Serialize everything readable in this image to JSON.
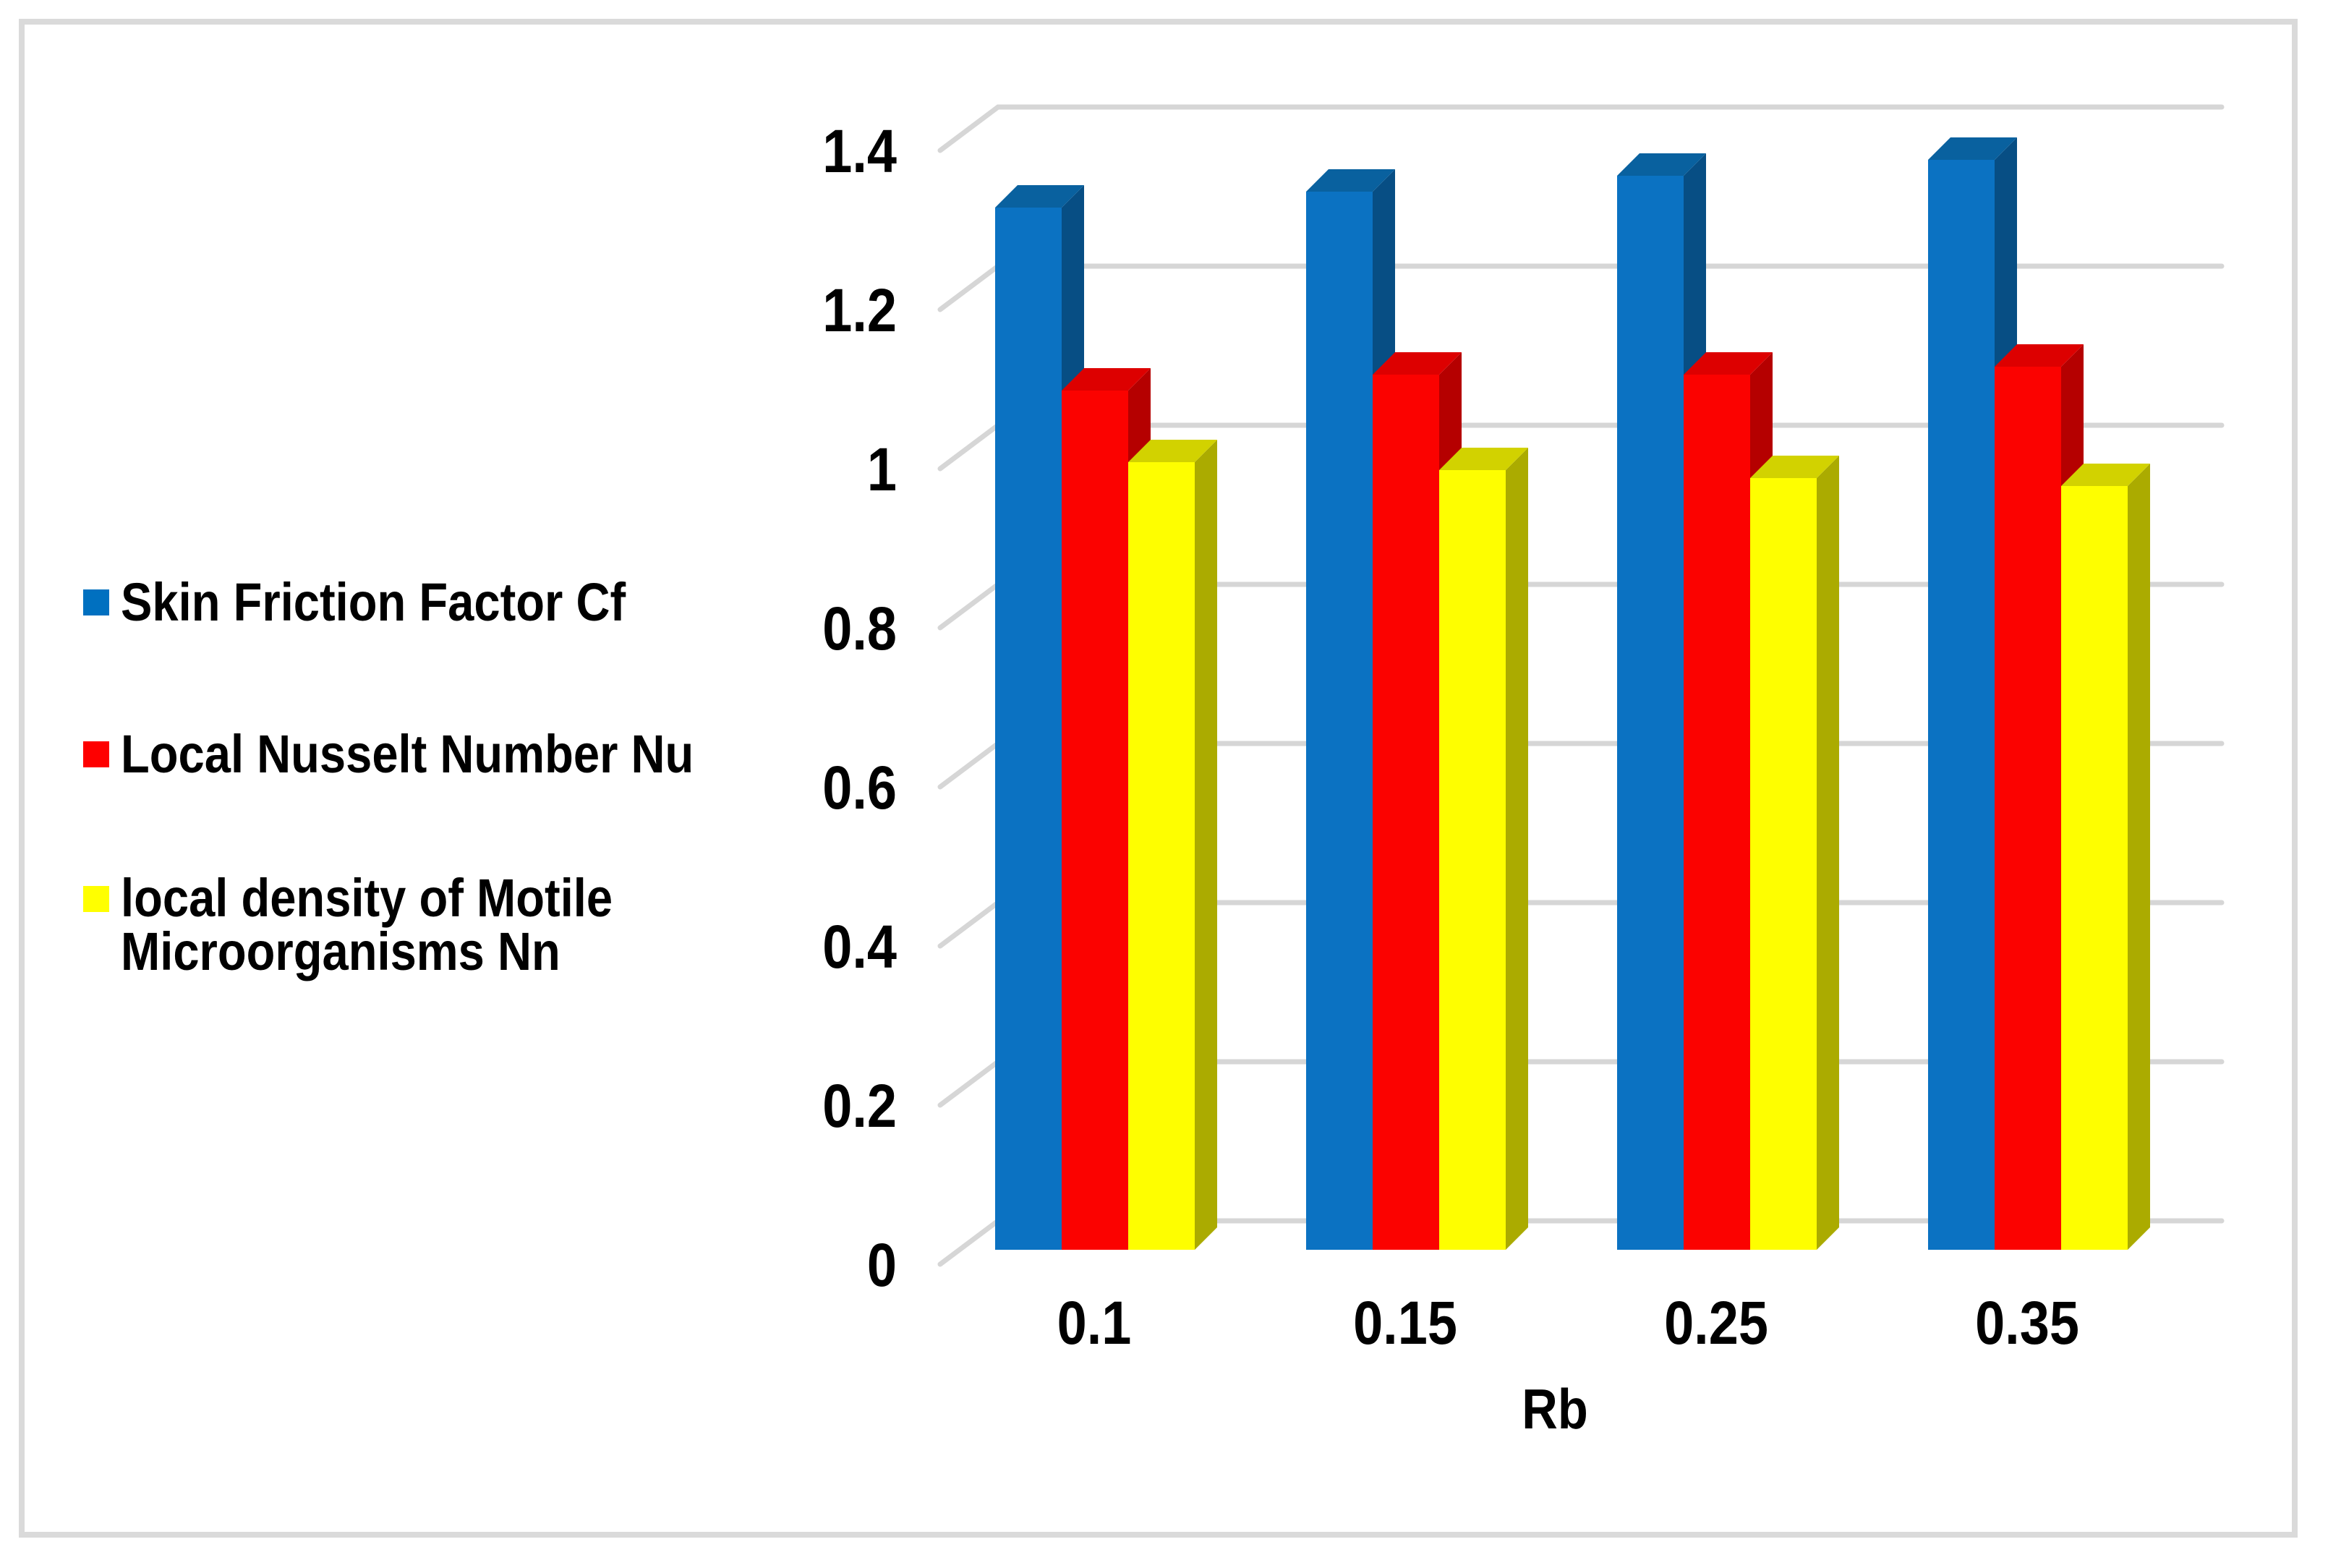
{
  "frame": {
    "border_color": "#DADADA",
    "background": "#FFFFFF"
  },
  "chart_data": {
    "type": "bar",
    "style": "3d-clustered-column",
    "title": "",
    "xlabel": "Rb",
    "ylabel": "",
    "categories": [
      "0.1",
      "0.15",
      "0.25",
      "0.35"
    ],
    "series": [
      {
        "name": "Skin Friction Factor Cf",
        "color": "#0B72C2",
        "top_color": "#09619F",
        "side_color": "#074E84",
        "values": [
          1.31,
          1.33,
          1.35,
          1.37
        ]
      },
      {
        "name": "Local Nusselt Number Nu",
        "color": "#FB0200",
        "top_color": "#DD0000",
        "side_color": "#B50000",
        "values": [
          1.08,
          1.1,
          1.1,
          1.11
        ]
      },
      {
        "name": "local density of Motile Microorganisms Nn",
        "color": "#FEFE00",
        "top_color": "#D2D200",
        "side_color": "#ABAB00",
        "values": [
          0.99,
          0.98,
          0.97,
          0.96
        ]
      }
    ],
    "ylim": [
      0,
      1.4
    ],
    "yticks": [
      "0",
      "0.2",
      "0.4",
      "0.6",
      "0.8",
      "1",
      "1.2",
      "1.4"
    ],
    "grid": true,
    "gridline_color": "#D6D6D6",
    "legend_position": "left",
    "text_color": "#000000"
  },
  "legend": {
    "items": [
      {
        "lines": [
          "Skin Friction Factor Cf"
        ],
        "color": "#0070C0"
      },
      {
        "lines": [
          "Local Nusselt Number Nu"
        ],
        "color": "#FE0000"
      },
      {
        "lines": [
          "local density of Motile",
          "Microorganisms Nn"
        ],
        "color": "#FFFF00"
      }
    ]
  },
  "x_axis": {
    "title": "Rb",
    "labels": [
      "0.1",
      "0.15",
      "0.25",
      "0.35"
    ]
  },
  "y_axis": {
    "labels": [
      "0",
      "0.2",
      "0.4",
      "0.6",
      "0.8",
      "1",
      "1.2",
      "1.4"
    ]
  }
}
